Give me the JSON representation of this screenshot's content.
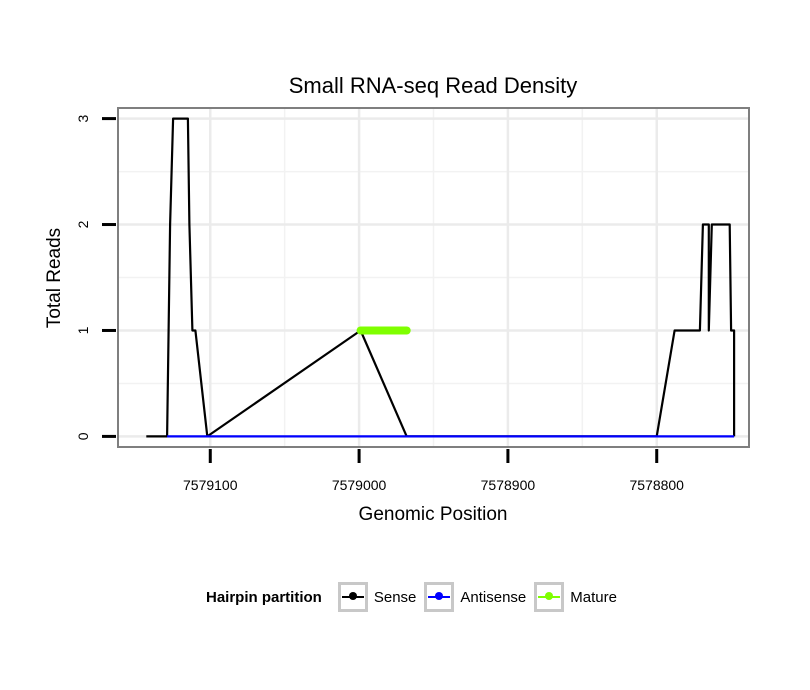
{
  "chart_data": {
    "type": "line",
    "title": "Small RNA-seq Read Density",
    "xlabel": "Genomic Position",
    "ylabel": "Total Reads",
    "x_reversed": true,
    "xlim": [
      7579162,
      7578738
    ],
    "ylim": [
      -0.1,
      3.1
    ],
    "xticks": [
      7579100,
      7579000,
      7578900,
      7578800
    ],
    "xtick_labels": [
      "7579100",
      "7579000",
      "7578900",
      "7578800"
    ],
    "yticks": [
      0,
      1,
      2,
      3
    ],
    "ytick_labels": [
      "0",
      "1",
      "2",
      "3"
    ],
    "grid": true,
    "legend_title": "Hairpin partition",
    "legend_position": "bottom",
    "series": [
      {
        "name": "Sense",
        "color": "#000000",
        "x": [
          7579143,
          7579129,
          7579127,
          7579125,
          7579115,
          7579114,
          7579112,
          7579110,
          7579102,
          7578999,
          7578968,
          7578800,
          7578788,
          7578788,
          7578771,
          7578769,
          7578765,
          7578765,
          7578763,
          7578751,
          7578750,
          7578748,
          7578748
        ],
        "y": [
          0,
          0,
          2,
          3,
          3,
          2,
          1,
          1,
          0,
          1,
          0,
          0,
          1,
          1,
          1,
          2,
          2,
          1,
          2,
          2,
          1,
          1,
          0
        ]
      },
      {
        "name": "Antisense",
        "color": "#0000ff",
        "x": [
          7579129,
          7579102,
          7578999,
          7578968,
          7578788,
          7578748
        ],
        "y": [
          0,
          0,
          0,
          0,
          0,
          0
        ]
      },
      {
        "name": "Mature",
        "color": "#7fff00",
        "x": [
          7578999,
          7578968
        ],
        "y": [
          1,
          1
        ]
      }
    ]
  }
}
